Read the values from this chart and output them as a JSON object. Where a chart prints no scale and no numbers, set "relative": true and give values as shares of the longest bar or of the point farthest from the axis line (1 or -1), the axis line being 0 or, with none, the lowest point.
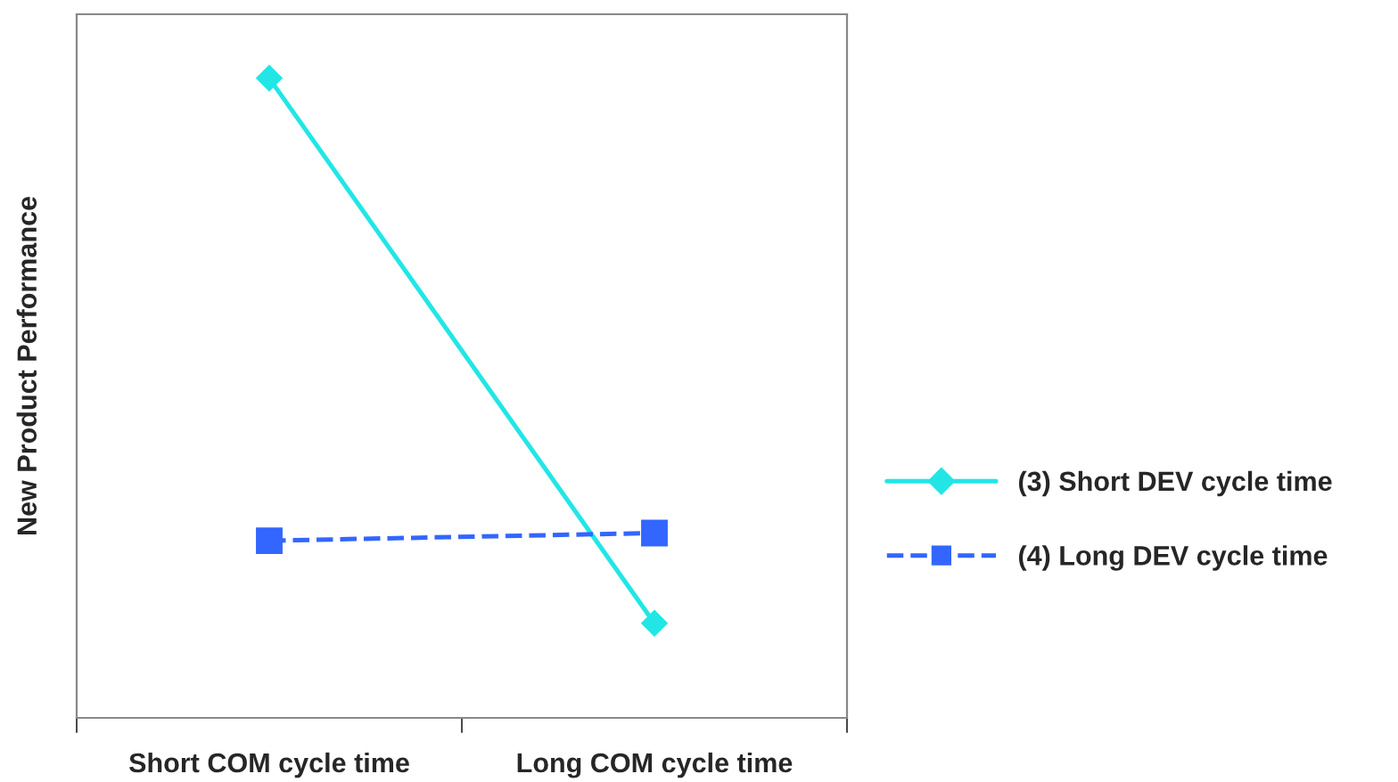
{
  "chart_data": {
    "type": "line",
    "relative": true,
    "ylabel": "New Product Performance",
    "categories": [
      "Short COM cycle time",
      "Long COM cycle time"
    ],
    "series": [
      {
        "name": "(3) Short DEV cycle time",
        "color": "#22e6e6",
        "values": [
          1,
          0.148
        ],
        "marker": "diamond",
        "line_style": "solid"
      },
      {
        "name": "(4) Long DEV cycle time",
        "color": "#3366ff",
        "values": [
          0.277,
          0.289
        ],
        "marker": "square",
        "line_style": "dashed"
      }
    ],
    "legend": "right",
    "grid": false
  }
}
